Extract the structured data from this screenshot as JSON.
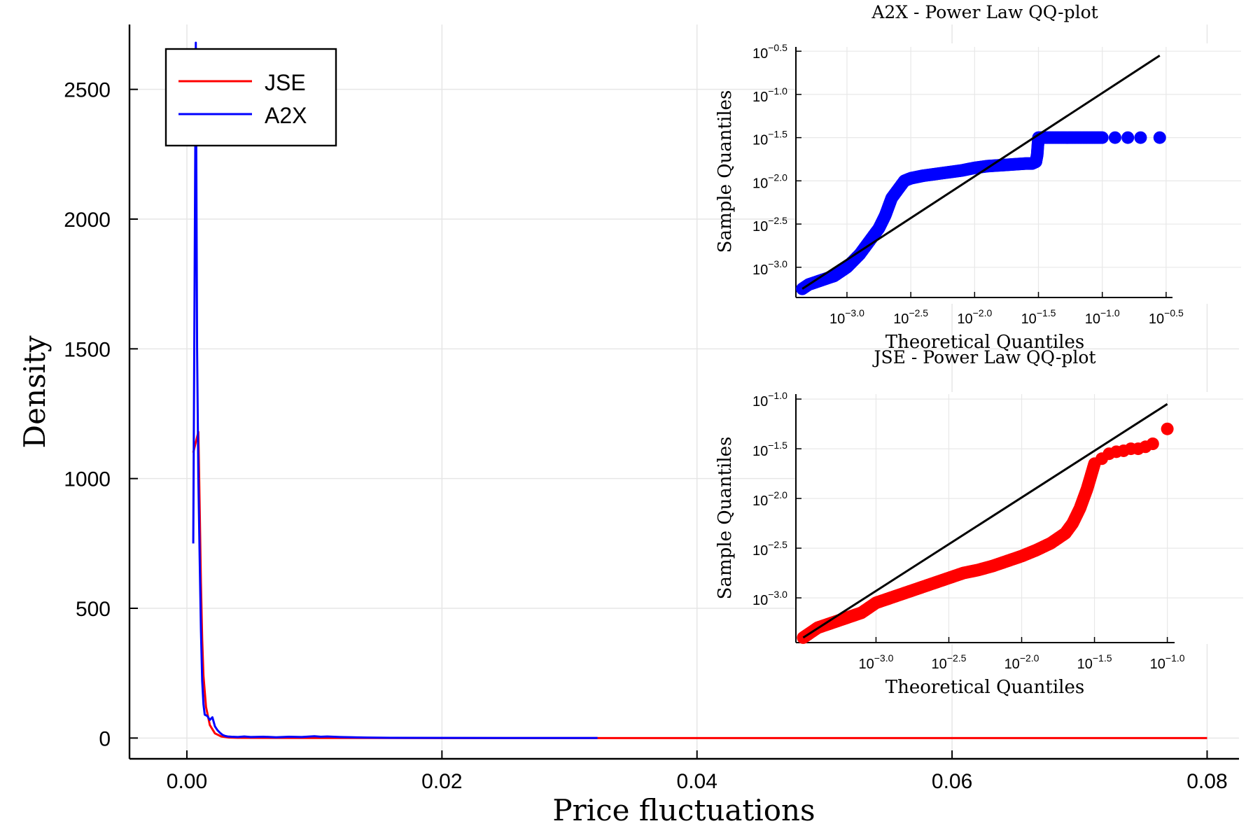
{
  "chart_data": [
    {
      "type": "line",
      "title": "",
      "xlabel": "Price fluctuations",
      "ylabel": "Density",
      "xlim": [
        -0.0045,
        0.0825
      ],
      "ylim": [
        -80,
        2750
      ],
      "x_ticks": [
        0.0,
        0.02,
        0.04,
        0.06,
        0.08
      ],
      "x_tick_labels": [
        "0.00",
        "0.02",
        "0.04",
        "0.06",
        "0.08"
      ],
      "y_ticks": [
        0,
        500,
        1000,
        1500,
        2000,
        2500
      ],
      "y_tick_labels": [
        "0",
        "500",
        "1000",
        "1500",
        "2000",
        "2500"
      ],
      "grid": true,
      "legend_position": "top-left",
      "series": [
        {
          "name": "JSE",
          "color": "#ff0000",
          "x": [
            0.0005,
            0.0007,
            0.0009,
            0.001,
            0.0011,
            0.0012,
            0.0013,
            0.0015,
            0.0018,
            0.0022,
            0.0027,
            0.0033,
            0.004,
            0.006,
            0.01,
            0.02,
            0.04,
            0.06,
            0.08
          ],
          "y": [
            1100,
            1140,
            1180,
            900,
            600,
            380,
            240,
            120,
            50,
            18,
            6,
            2,
            1,
            0.5,
            0.2,
            0.05,
            0.01,
            0.005,
            0
          ]
        },
        {
          "name": "A2X",
          "color": "#0000ff",
          "x": [
            0.0005,
            0.0007,
            0.0008,
            0.0009,
            0.001,
            0.0011,
            0.0012,
            0.0013,
            0.0014,
            0.0016,
            0.0018,
            0.002,
            0.0022,
            0.0024,
            0.0026,
            0.0028,
            0.003,
            0.0032,
            0.0035,
            0.004,
            0.0045,
            0.005,
            0.006,
            0.007,
            0.008,
            0.009,
            0.01,
            0.0105,
            0.011,
            0.012,
            0.013,
            0.014,
            0.016,
            0.02,
            0.025,
            0.03,
            0.0322
          ],
          "y": [
            750,
            2680,
            1500,
            1000,
            700,
            420,
            220,
            130,
            90,
            85,
            70,
            80,
            45,
            30,
            20,
            12,
            8,
            6,
            5,
            4,
            6,
            4,
            5,
            3,
            5,
            4,
            7,
            5,
            6,
            4,
            3,
            2,
            1,
            0.5,
            0.3,
            0.2,
            0.1
          ]
        }
      ]
    },
    {
      "type": "scatter",
      "title": "A2X - Power Law QQ-plot",
      "xlabel": "Theoretical Quantiles",
      "ylabel": "Sample Quantiles",
      "scale": "log10",
      "xlim_log10": [
        -3.4,
        -0.45
      ],
      "ylim_log10": [
        -3.35,
        -0.45
      ],
      "x_tick_exponents": [
        "−3.0",
        "−2.5",
        "−2.0",
        "−1.5",
        "−1.0",
        "−0.5"
      ],
      "y_tick_exponents": [
        "−0.5",
        "−1.0",
        "−1.5",
        "−2.0",
        "−2.5",
        "−3.0"
      ],
      "grid": true,
      "marker_color": "#0000ff",
      "reference_line": {
        "x_log10": [
          -3.35,
          -0.55
        ],
        "y_log10": [
          -3.25,
          -0.55
        ]
      },
      "points": {
        "x_log10": [
          -3.35,
          -3.3,
          -3.2,
          -3.1,
          -3.0,
          -2.9,
          -2.8,
          -2.75,
          -2.7,
          -2.65,
          -2.6,
          -2.55,
          -2.5,
          -2.4,
          -2.3,
          -2.2,
          -2.1,
          -2.0,
          -1.9,
          -1.8,
          -1.7,
          -1.6,
          -1.55,
          -1.52,
          -1.51,
          -1.5,
          -1.4,
          -1.3,
          -1.2,
          -1.1,
          -1.0,
          -0.9,
          -0.8,
          -0.7,
          -0.55
        ],
        "y_log10": [
          -3.25,
          -3.2,
          -3.15,
          -3.1,
          -3.0,
          -2.85,
          -2.65,
          -2.55,
          -2.4,
          -2.2,
          -2.1,
          -2.0,
          -1.97,
          -1.94,
          -1.92,
          -1.9,
          -1.88,
          -1.85,
          -1.83,
          -1.82,
          -1.81,
          -1.8,
          -1.8,
          -1.78,
          -1.7,
          -1.5,
          -1.5,
          -1.5,
          -1.5,
          -1.5,
          -1.5,
          -1.5,
          -1.5,
          -1.5,
          -1.5
        ]
      }
    },
    {
      "type": "scatter",
      "title": "JSE - Power Law QQ-plot",
      "xlabel": "Theoretical Quantiles",
      "ylabel": "Sample Quantiles",
      "scale": "log10",
      "xlim_log10": [
        -3.55,
        -0.95
      ],
      "ylim_log10": [
        -3.45,
        -0.95
      ],
      "x_tick_exponents": [
        "−3.0",
        "−2.5",
        "−2.0",
        "−1.5",
        "−1.0"
      ],
      "y_tick_exponents": [
        "−1.0",
        "−1.5",
        "−2.0",
        "−2.5",
        "−3.0"
      ],
      "grid": true,
      "marker_color": "#ff0000",
      "reference_line": {
        "x_log10": [
          -3.5,
          -1.0
        ],
        "y_log10": [
          -3.4,
          -1.05
        ]
      },
      "points": {
        "x_log10": [
          -3.5,
          -3.45,
          -3.4,
          -3.3,
          -3.2,
          -3.1,
          -3.0,
          -2.9,
          -2.8,
          -2.7,
          -2.6,
          -2.5,
          -2.4,
          -2.3,
          -2.2,
          -2.1,
          -2.0,
          -1.9,
          -1.8,
          -1.7,
          -1.65,
          -1.6,
          -1.55,
          -1.52,
          -1.5,
          -1.45,
          -1.4,
          -1.35,
          -1.3,
          -1.25,
          -1.2,
          -1.15,
          -1.1,
          -1.0
        ],
        "y_log10": [
          -3.4,
          -3.35,
          -3.3,
          -3.25,
          -3.2,
          -3.15,
          -3.05,
          -3.0,
          -2.95,
          -2.9,
          -2.85,
          -2.8,
          -2.75,
          -2.72,
          -2.68,
          -2.63,
          -2.58,
          -2.52,
          -2.45,
          -2.35,
          -2.25,
          -2.1,
          -1.9,
          -1.75,
          -1.65,
          -1.6,
          -1.55,
          -1.53,
          -1.52,
          -1.5,
          -1.5,
          -1.48,
          -1.45,
          -1.3
        ]
      }
    }
  ]
}
